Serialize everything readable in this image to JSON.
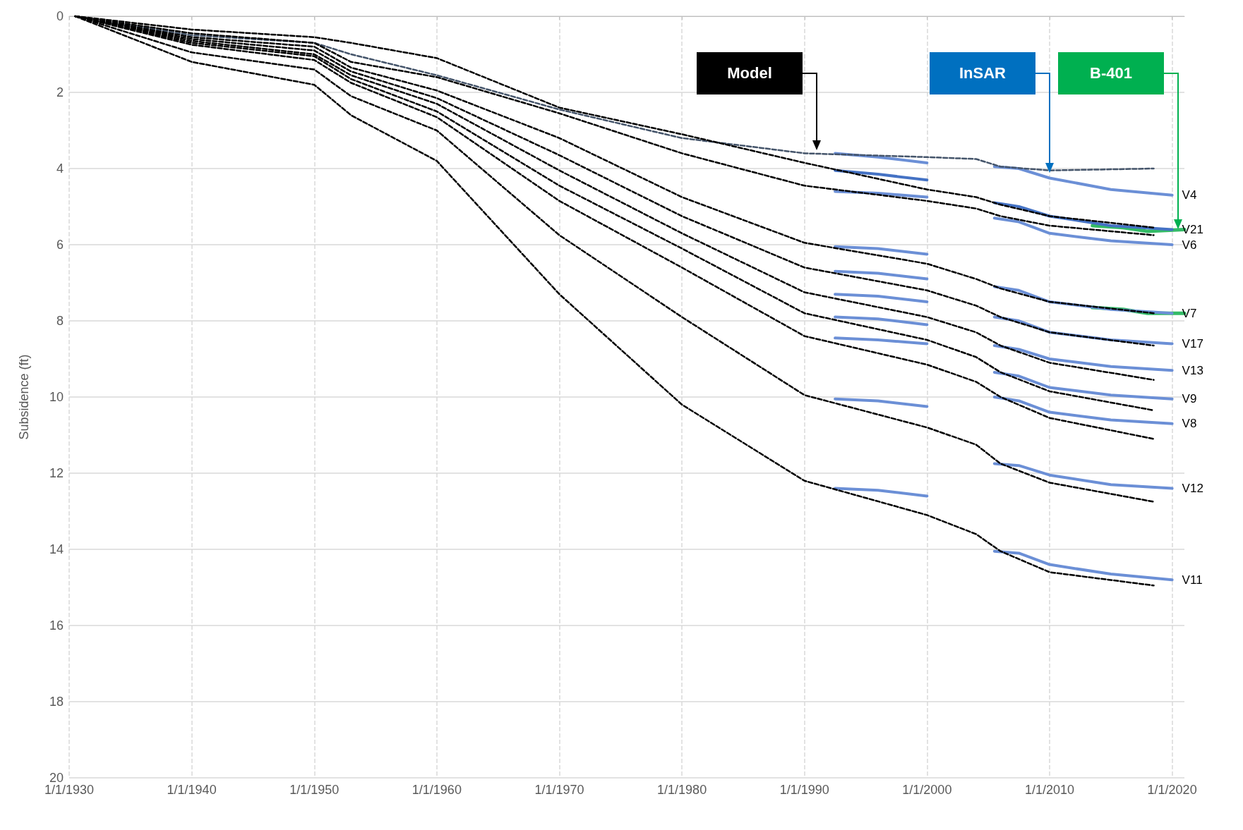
{
  "chart_data": {
    "type": "line",
    "ylabel": "Subsidence (ft)",
    "xlim": [
      "1930-01-01",
      "2021-01-01"
    ],
    "ylim": [
      20,
      0
    ],
    "xticks": [
      {
        "value": "1930-01-01",
        "label": "1/1/1930"
      },
      {
        "value": "1940-01-01",
        "label": "1/1/1940"
      },
      {
        "value": "1950-01-01",
        "label": "1/1/1950"
      },
      {
        "value": "1960-01-01",
        "label": "1/1/1960"
      },
      {
        "value": "1970-01-01",
        "label": "1/1/1970"
      },
      {
        "value": "1980-01-01",
        "label": "1/1/1980"
      },
      {
        "value": "1990-01-01",
        "label": "1/1/1990"
      },
      {
        "value": "2000-01-01",
        "label": "1/1/2000"
      },
      {
        "value": "2010-01-01",
        "label": "1/1/2010"
      },
      {
        "value": "2020-01-01",
        "label": "1/1/2020"
      }
    ],
    "yticks": [
      0,
      2,
      4,
      6,
      8,
      10,
      12,
      14,
      16,
      18,
      20
    ],
    "grid": true,
    "legend": false,
    "marker": "none",
    "x": [
      "1930-07-01",
      "1940-01-01",
      "1950-01-01",
      "1953-01-01",
      "1960-01-01",
      "1970-01-01",
      "1980-01-01",
      "1990-01-01",
      "2000-01-01",
      "2004-01-01",
      "2006-01-01",
      "2010-01-01",
      "2018-07-01"
    ],
    "annotations": [
      "Model",
      "InSAR",
      "B-401"
    ],
    "series": [
      {
        "color": "#44546a",
        "line_style": "dashed",
        "values": [
          0,
          0.5,
          0.7,
          1.0,
          1.55,
          2.45,
          3.2,
          3.6,
          3.7,
          3.75,
          3.95,
          4.05,
          4.0
        ]
      },
      {
        "color": "#000000",
        "line_style": "dashed",
        "values": [
          0,
          0.35,
          0.55,
          0.7,
          1.1,
          2.4,
          3.1,
          3.85,
          4.55,
          4.75,
          4.95,
          5.25,
          5.55
        ]
      },
      {
        "color": "#000000",
        "line_style": "dashed",
        "values": [
          0,
          0.45,
          0.7,
          1.2,
          1.6,
          2.55,
          3.6,
          4.45,
          4.85,
          5.05,
          5.25,
          5.5,
          5.75
        ]
      },
      {
        "color": "#000000",
        "line_style": "dashed",
        "values": [
          0,
          0.55,
          0.8,
          1.35,
          1.95,
          3.2,
          4.75,
          5.95,
          6.5,
          6.9,
          7.15,
          7.5,
          7.8
        ]
      },
      {
        "color": "#000000",
        "line_style": "dashed",
        "values": [
          0,
          0.6,
          0.9,
          1.45,
          2.15,
          3.65,
          5.25,
          6.6,
          7.2,
          7.6,
          7.9,
          8.3,
          8.65
        ]
      },
      {
        "color": "#000000",
        "line_style": "dashed",
        "values": [
          0,
          0.65,
          1.0,
          1.55,
          2.3,
          4.05,
          5.7,
          7.25,
          7.9,
          8.3,
          8.65,
          9.1,
          9.55
        ]
      },
      {
        "color": "#000000",
        "line_style": "dashed",
        "values": [
          0,
          0.7,
          1.05,
          1.65,
          2.5,
          4.45,
          6.1,
          7.8,
          8.5,
          8.95,
          9.35,
          9.85,
          10.35
        ]
      },
      {
        "color": "#000000",
        "line_style": "dashed",
        "values": [
          0,
          0.75,
          1.15,
          1.75,
          2.65,
          4.85,
          6.6,
          8.4,
          9.15,
          9.6,
          10.0,
          10.55,
          11.1
        ]
      },
      {
        "color": "#000000",
        "line_style": "dashed",
        "values": [
          0,
          0.95,
          1.4,
          2.1,
          3.0,
          5.75,
          7.9,
          9.95,
          10.8,
          11.25,
          11.75,
          12.25,
          12.75
        ]
      },
      {
        "color": "#000000",
        "line_style": "dashed",
        "values": [
          0,
          1.2,
          1.8,
          2.6,
          3.8,
          7.3,
          10.2,
          12.2,
          13.1,
          13.6,
          14.05,
          14.6,
          14.95
        ]
      },
      {
        "name": "V4",
        "color": "#6b8fd6",
        "line_style": "solid",
        "x": [
          "1992-07-01",
          "1996-01-01",
          "2000-01-01",
          "2003-01-01",
          "2005-07-01",
          "2007-07-01",
          "2010-01-01",
          "2015-01-01",
          "2020-01-01"
        ],
        "values": [
          3.6,
          3.7,
          3.85,
          null,
          3.95,
          4.0,
          4.25,
          4.55,
          4.7
        ]
      },
      {
        "name": "V21",
        "color": "#4472c4",
        "line_style": "solid",
        "x": [
          "1992-07-01",
          "1996-01-01",
          "2000-01-01",
          "2003-01-01",
          "2005-07-01",
          "2007-07-01",
          "2010-01-01",
          "2015-01-01",
          "2020-01-01"
        ],
        "values": [
          4.05,
          4.15,
          4.3,
          null,
          4.9,
          5.0,
          5.25,
          5.5,
          5.6
        ]
      },
      {
        "name": "V6",
        "color": "#6b8fd6",
        "line_style": "solid",
        "x": [
          "1992-07-01",
          "1996-01-01",
          "2000-01-01",
          "2003-01-01",
          "2005-07-01",
          "2007-07-01",
          "2010-01-01",
          "2015-01-01",
          "2020-01-01"
        ],
        "values": [
          4.6,
          4.65,
          4.75,
          null,
          5.3,
          5.4,
          5.7,
          5.9,
          6.0
        ]
      },
      {
        "name": "V7",
        "color": "#6b8fd6",
        "line_style": "solid",
        "x": [
          "1992-07-01",
          "1996-01-01",
          "2000-01-01",
          "2003-01-01",
          "2005-07-01",
          "2007-07-01",
          "2010-01-01",
          "2015-01-01",
          "2020-01-01"
        ],
        "values": [
          6.05,
          6.1,
          6.25,
          null,
          7.1,
          7.2,
          7.5,
          7.7,
          7.8
        ]
      },
      {
        "name": "V17",
        "color": "#6b8fd6",
        "line_style": "solid",
        "x": [
          "1992-07-01",
          "1996-01-01",
          "2000-01-01",
          "2003-01-01",
          "2005-07-01",
          "2007-07-01",
          "2010-01-01",
          "2015-01-01",
          "2020-01-01"
        ],
        "values": [
          6.7,
          6.75,
          6.9,
          null,
          7.9,
          8.0,
          8.3,
          8.5,
          8.6
        ]
      },
      {
        "name": "V13",
        "color": "#6b8fd6",
        "line_style": "solid",
        "x": [
          "1992-07-01",
          "1996-01-01",
          "2000-01-01",
          "2003-01-01",
          "2005-07-01",
          "2007-07-01",
          "2010-01-01",
          "2015-01-01",
          "2020-01-01"
        ],
        "values": [
          7.3,
          7.35,
          7.5,
          null,
          8.65,
          8.75,
          9.0,
          9.2,
          9.3
        ]
      },
      {
        "name": "V9",
        "color": "#6b8fd6",
        "line_style": "solid",
        "x": [
          "1992-07-01",
          "1996-01-01",
          "2000-01-01",
          "2003-01-01",
          "2005-07-01",
          "2007-07-01",
          "2010-01-01",
          "2015-01-01",
          "2020-01-01"
        ],
        "values": [
          7.9,
          7.95,
          8.1,
          null,
          9.35,
          9.45,
          9.75,
          9.95,
          10.05
        ]
      },
      {
        "name": "V8",
        "color": "#6b8fd6",
        "line_style": "solid",
        "x": [
          "1992-07-01",
          "1996-01-01",
          "2000-01-01",
          "2003-01-01",
          "2005-07-01",
          "2007-07-01",
          "2010-01-01",
          "2015-01-01",
          "2020-01-01"
        ],
        "values": [
          8.45,
          8.5,
          8.6,
          null,
          10.0,
          10.1,
          10.4,
          10.6,
          10.7
        ]
      },
      {
        "name": "V12",
        "color": "#6b8fd6",
        "line_style": "solid",
        "x": [
          "1992-07-01",
          "1996-01-01",
          "2000-01-01",
          "2003-01-01",
          "2005-07-01",
          "2007-07-01",
          "2010-01-01",
          "2015-01-01",
          "2020-01-01"
        ],
        "values": [
          10.05,
          10.1,
          10.25,
          null,
          11.75,
          11.8,
          12.05,
          12.3,
          12.4
        ]
      },
      {
        "name": "V11",
        "color": "#6b8fd6",
        "line_style": "solid",
        "x": [
          "1992-07-01",
          "1996-01-01",
          "2000-01-01",
          "2003-01-01",
          "2005-07-01",
          "2007-07-01",
          "2010-01-01",
          "2015-01-01",
          "2020-01-01"
        ],
        "values": [
          12.4,
          12.45,
          12.6,
          null,
          14.05,
          14.1,
          14.4,
          14.65,
          14.8
        ]
      },
      {
        "color": "#33bb66",
        "line_style": "solid",
        "x": [
          "2013-07-01",
          "2016-01-01",
          "2018-01-01",
          "2021-01-01"
        ],
        "values": [
          5.5,
          5.55,
          5.65,
          5.6
        ]
      },
      {
        "color": "#33bb66",
        "line_style": "solid",
        "x": [
          "2013-07-01",
          "2016-01-01",
          "2018-01-01",
          "2021-01-01"
        ],
        "values": [
          7.65,
          7.7,
          7.8,
          7.8
        ]
      }
    ]
  }
}
